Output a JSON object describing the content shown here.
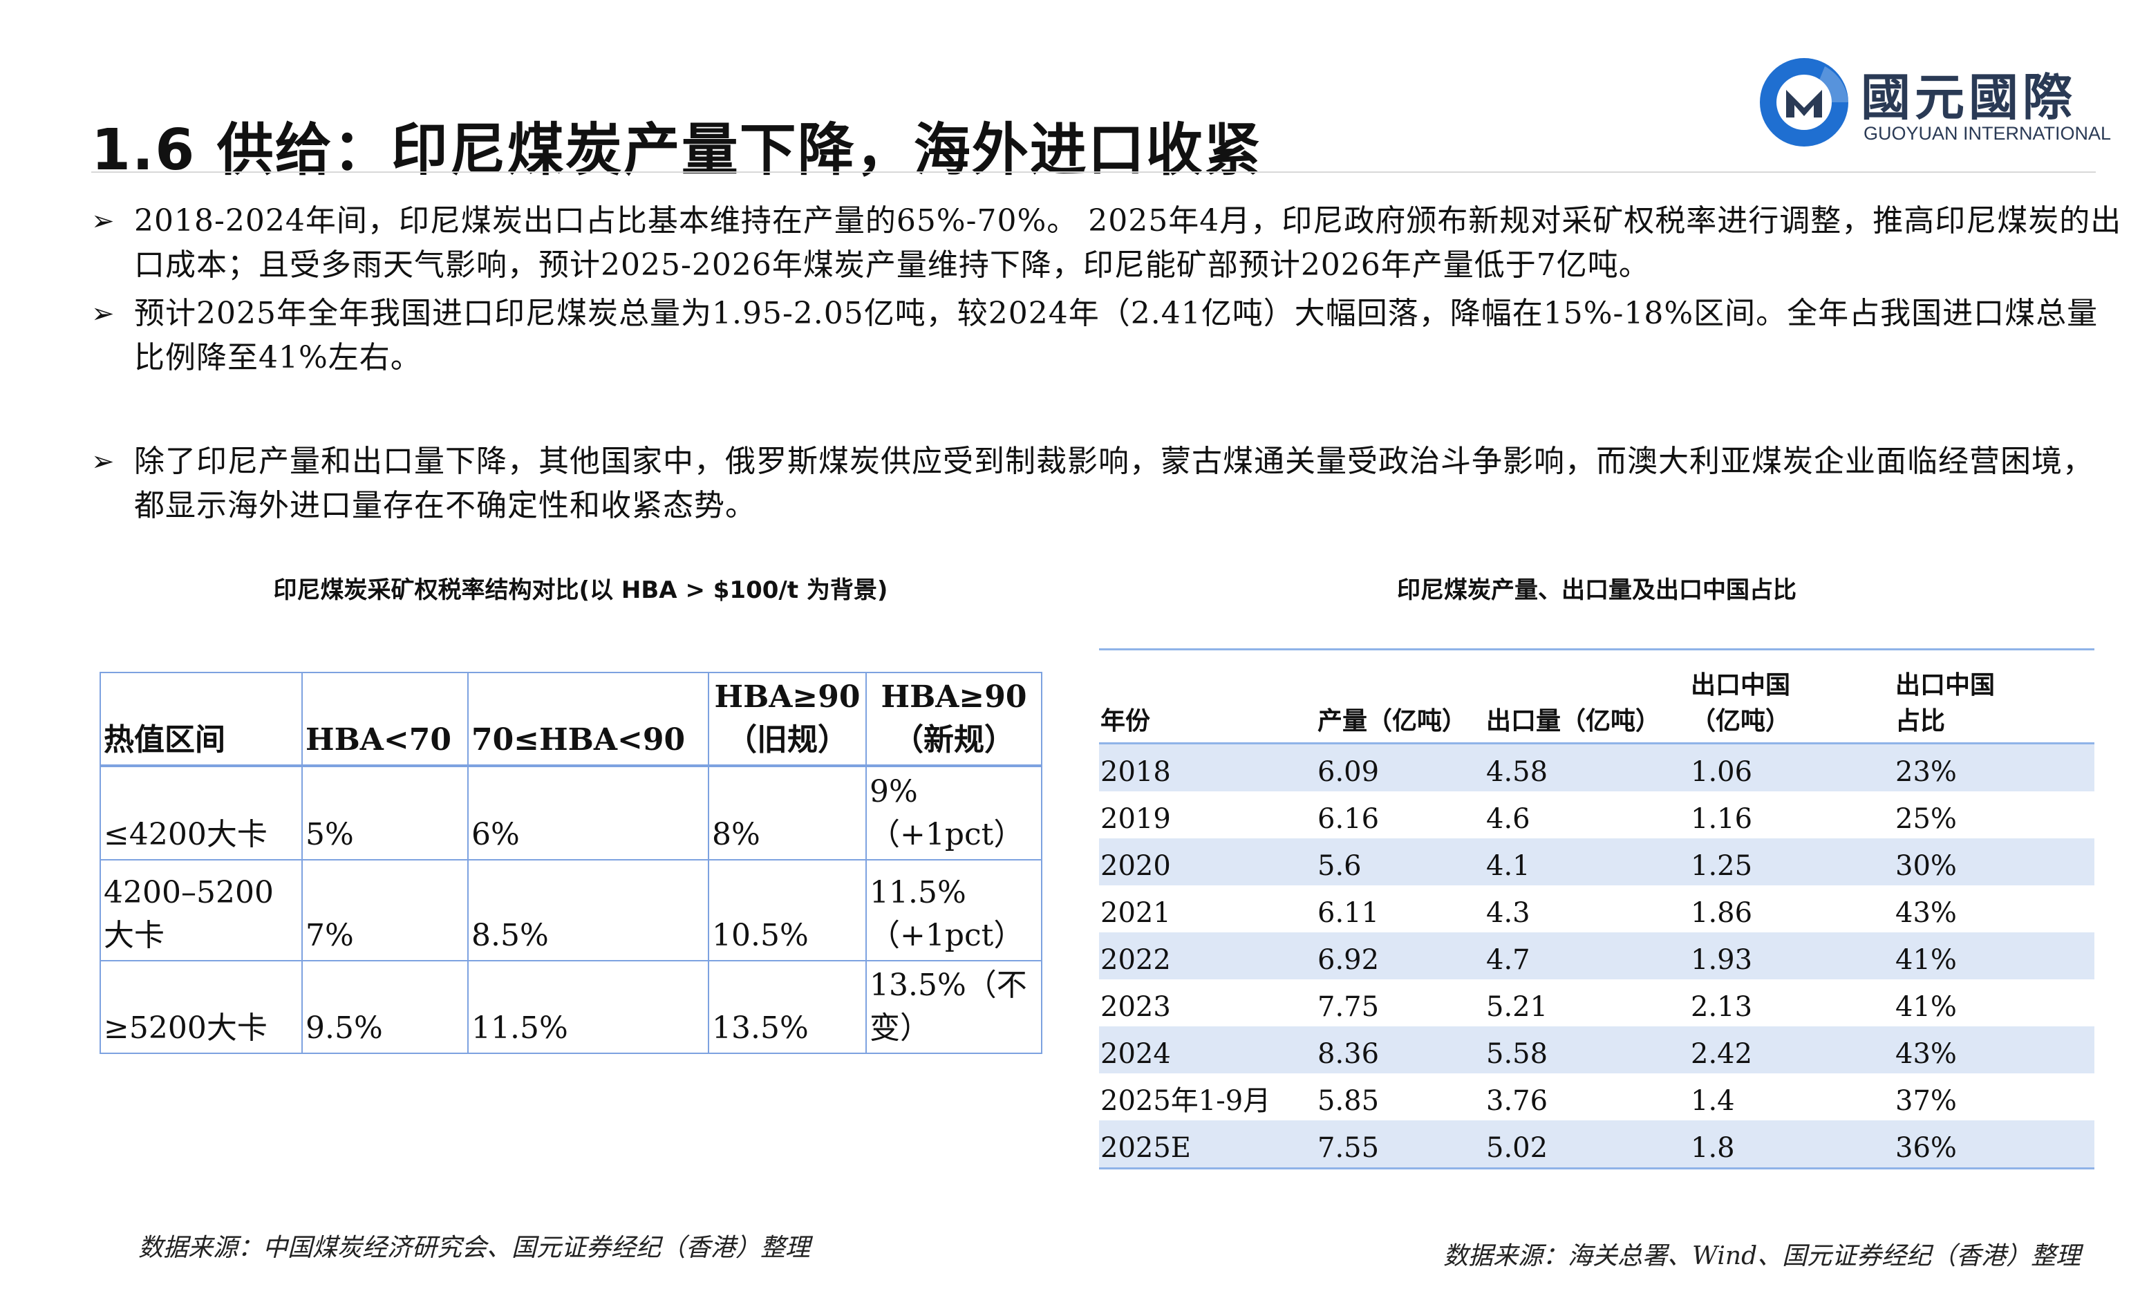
{
  "slide": {
    "title": "1.6 供给：印尼煤炭产量下降，海外进口收紧"
  },
  "logo": {
    "cn": "國元國際",
    "en": "GUOYUAN INTERNATIONAL",
    "accent": "#1f6fd1",
    "dark": "#2a3a55"
  },
  "bullets": [
    {
      "marker": "➢",
      "text": "2018-2024年间，印尼煤炭出口占比基本维持在产量的65%-70%。 2025年4月，印尼政府颁布新规对采矿权税率进行调整，推高印尼煤炭的出口成本；且受多雨天气影响，预计2025-2026年煤炭产量维持下降，印尼能矿部预计2026年产量低于7亿吨。"
    },
    {
      "marker": "➢",
      "text": "预计2025年全年我国进口印尼煤炭总量为1.95-2.05亿吨，较2024年（2.41亿吨）大幅回落，降幅在15%-18%区间。全年占我国进口煤总量比例降至41%左右。"
    },
    {
      "marker": "➢",
      "text": "除了印尼产量和出口量下降，其他国家中，俄罗斯煤炭供应受到制裁影响，蒙古煤通关量受政治斗争影响，而澳大利亚煤炭企业面临经营困境，都显示海外进口量存在不确定性和收紧态势。"
    }
  ],
  "left_table": {
    "caption": "印尼煤炭采矿权税率结构对比(以 HBA > $100/t 为背景)",
    "headers": [
      "热值区间",
      "HBA<70",
      "70≤HBA<90",
      "HBA≥90\n（旧规）",
      "HBA≥90\n（新规）"
    ],
    "rows": [
      [
        "≤4200大卡",
        "5%",
        "6%",
        "8%",
        "9%\n（+1pct）"
      ],
      [
        "4200–5200\n大卡",
        "7%",
        "8.5%",
        "10.5%",
        "11.5%\n（+1pct）"
      ],
      [
        "≥5200大卡",
        "9.5%",
        "11.5%",
        "13.5%",
        "13.5%（不变）"
      ]
    ],
    "border_color": "#7da2e0",
    "source": "数据来源：中国煤炭经济研究会、国元证券经纪（香港）整理"
  },
  "right_table": {
    "caption": "印尼煤炭产量、出口量及出口中国占比",
    "headers": [
      "年份",
      "产量（亿吨）",
      "出口量（亿吨）",
      "出口中国\n（亿吨）",
      "出口中国\n占比"
    ],
    "rows": [
      [
        "2018",
        "6.09",
        "4.58",
        "1.06",
        "23%"
      ],
      [
        "2019",
        "6.16",
        "4.6",
        "1.16",
        "25%"
      ],
      [
        "2020",
        "5.6",
        "4.1",
        "1.25",
        "30%"
      ],
      [
        "2021",
        "6.11",
        "4.3",
        "1.86",
        "43%"
      ],
      [
        "2022",
        "6.92",
        "4.7",
        "1.93",
        "41%"
      ],
      [
        "2023",
        "7.75",
        "5.21",
        "2.13",
        "41%"
      ],
      [
        "2024",
        "8.36",
        "5.58",
        "2.42",
        "43%"
      ],
      [
        "2025年1-9月",
        "5.85",
        "3.76",
        "1.4",
        "37%"
      ],
      [
        "2025E",
        "7.55",
        "5.02",
        "1.8",
        "36%"
      ]
    ],
    "stripe_color": "#dde7f6",
    "source": "数据来源：海关总署、Wind、国元证券经纪（香港）整理"
  }
}
